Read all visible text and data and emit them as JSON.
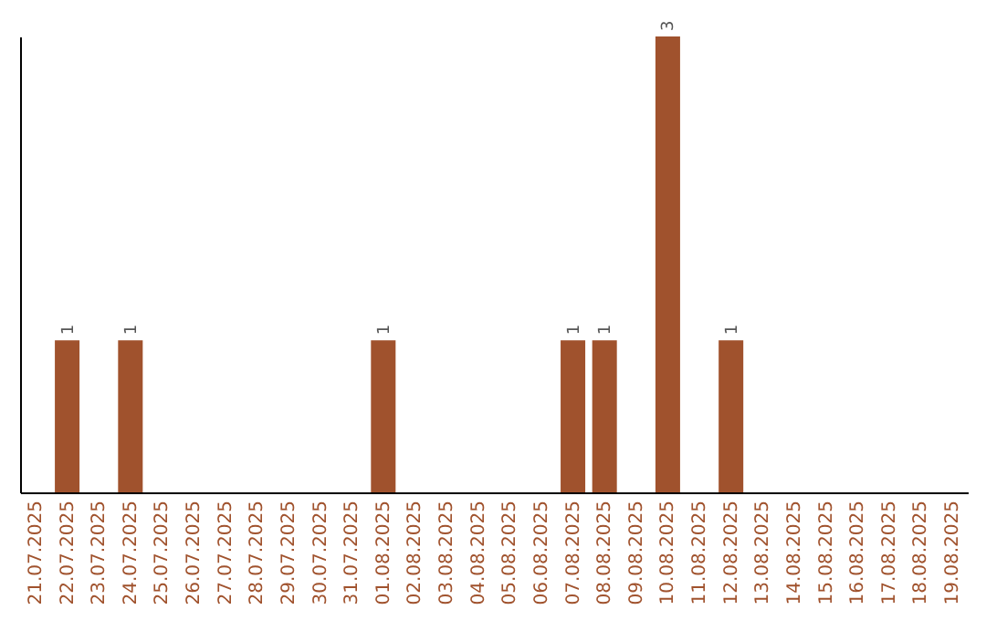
{
  "chart_data": {
    "type": "bar",
    "categories": [
      "21.07.2025",
      "22.07.2025",
      "23.07.2025",
      "24.07.2025",
      "25.07.2025",
      "26.07.2025",
      "27.07.2025",
      "28.07.2025",
      "29.07.2025",
      "30.07.2025",
      "31.07.2025",
      "01.08.2025",
      "02.08.2025",
      "03.08.2025",
      "04.08.2025",
      "05.08.2025",
      "06.08.2025",
      "07.08.2025",
      "08.08.2025",
      "09.08.2025",
      "10.08.2025",
      "11.08.2025",
      "12.08.2025",
      "13.08.2025",
      "14.08.2025",
      "15.08.2025",
      "16.08.2025",
      "17.08.2025",
      "18.08.2025",
      "19.08.2025"
    ],
    "values": [
      0,
      1,
      0,
      1,
      0,
      0,
      0,
      0,
      0,
      0,
      0,
      1,
      0,
      0,
      0,
      0,
      0,
      1,
      1,
      0,
      3,
      0,
      1,
      0,
      0,
      0,
      0,
      0,
      0,
      0
    ],
    "value_labels": [
      null,
      "1",
      null,
      "1",
      null,
      null,
      null,
      null,
      null,
      null,
      null,
      "1",
      null,
      null,
      null,
      null,
      null,
      "1",
      "1",
      null,
      "3",
      null,
      "1",
      null,
      null,
      null,
      null,
      null,
      null,
      null
    ],
    "color": "#a0522d",
    "tick_labels": "x",
    "grid": false
  }
}
